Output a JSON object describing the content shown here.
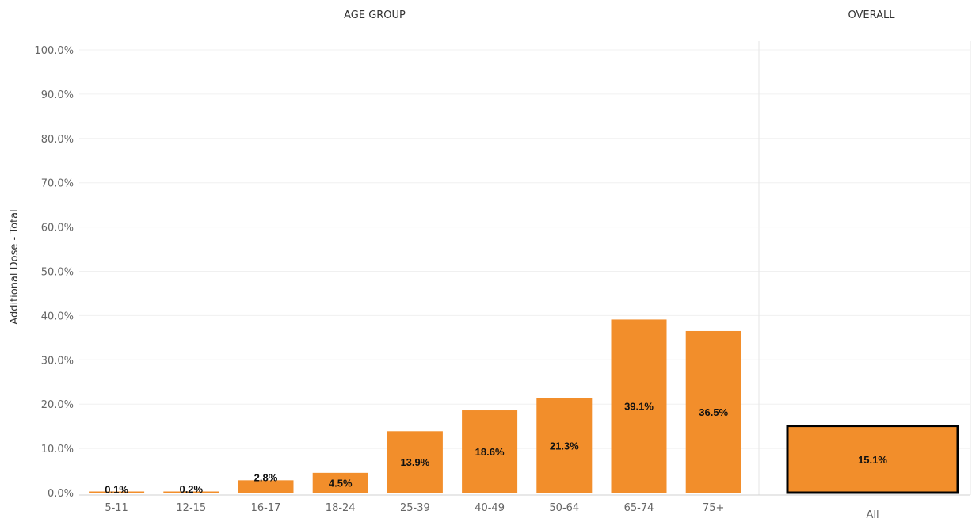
{
  "chart_data": [
    {
      "type": "bar",
      "panel_title": "AGE GROUP",
      "categories": [
        "5-11",
        "12-15",
        "16-17",
        "18-24",
        "25-39",
        "40-49",
        "50-64",
        "65-74",
        "75+"
      ],
      "values": [
        0.1,
        0.2,
        2.8,
        4.5,
        13.9,
        18.6,
        21.3,
        39.1,
        36.5
      ],
      "data_labels": [
        "0.1%",
        "0.2%",
        "2.8%",
        "4.5%",
        "13.9%",
        "18.6%",
        "21.3%",
        "39.1%",
        "36.5%"
      ],
      "ylabel": "Additional Dose - Total",
      "ylim": [
        0,
        100
      ],
      "yticks": [
        "0.0%",
        "10.0%",
        "20.0%",
        "30.0%",
        "40.0%",
        "50.0%",
        "60.0%",
        "70.0%",
        "80.0%",
        "90.0%",
        "100.0%"
      ],
      "grid": true,
      "bar_color": "#f28e2b"
    },
    {
      "type": "bar",
      "panel_title": "OVERALL",
      "categories": [
        "All"
      ],
      "values": [
        15.1
      ],
      "data_labels": [
        "15.1%"
      ],
      "ylim": [
        0,
        100
      ],
      "grid": true,
      "bar_color": "#f28e2b",
      "highlighted": true
    }
  ]
}
